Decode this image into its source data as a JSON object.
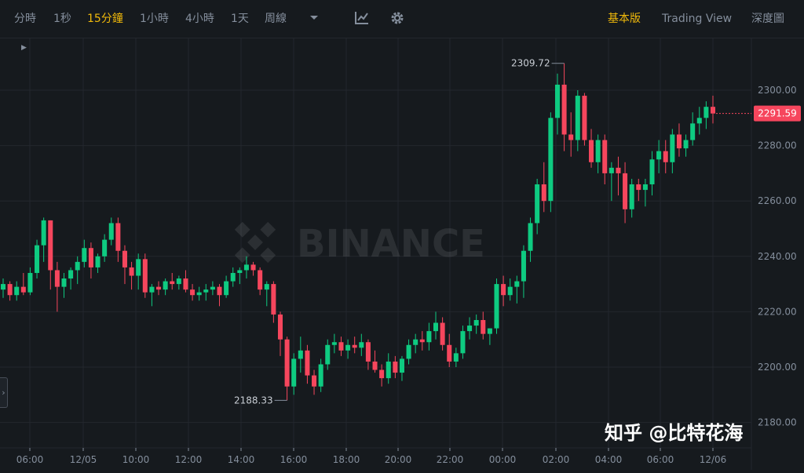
{
  "toolbar": {
    "intervals": [
      {
        "label": "分時",
        "active": false
      },
      {
        "label": "1秒",
        "active": false
      },
      {
        "label": "15分鐘",
        "active": true
      },
      {
        "label": "1小時",
        "active": false
      },
      {
        "label": "4小時",
        "active": false
      },
      {
        "label": "1天",
        "active": false
      },
      {
        "label": "周線",
        "active": false
      }
    ],
    "dropdown_icon": "chevron-down-icon",
    "indicator_icon": "indicator-icon",
    "settings_icon": "gear-icon",
    "views": [
      {
        "label": "基本版",
        "active": true
      },
      {
        "label": "Trading View",
        "active": false
      },
      {
        "label": "深度圖",
        "active": false
      }
    ]
  },
  "watermark": {
    "logo_text": "BINANCE",
    "caption": "知乎 @比特花海"
  },
  "colors": {
    "up": "#0ECB81",
    "down": "#F6465D",
    "accent": "#F0B90B",
    "background": "#161A1E",
    "grid": "#23272D",
    "text": "#848E9C"
  },
  "chart_data": {
    "type": "candlestick",
    "symbol": "",
    "y_ticks": [
      "2300.00",
      "2280.00",
      "2260.00",
      "2240.00",
      "2220.00",
      "2200.00",
      "2180.00"
    ],
    "x_ticks": [
      "06:00",
      "12/05",
      "10:00",
      "12:00",
      "14:00",
      "16:00",
      "18:00",
      "20:00",
      "22:00",
      "00:00",
      "02:00",
      "04:00",
      "06:00",
      "12/06"
    ],
    "last_price": "2291.59",
    "high_label": "2309.72",
    "low_label": "2188.33",
    "ylim": [
      2175,
      2315
    ],
    "interval": "15m",
    "candles": [
      [
        2228,
        2232,
        2225,
        2230
      ],
      [
        2230,
        2231,
        2224,
        2226
      ],
      [
        2226,
        2231,
        2224,
        2229
      ],
      [
        2229,
        2234,
        2226,
        2227
      ],
      [
        2227,
        2236,
        2226,
        2234
      ],
      [
        2234,
        2246,
        2232,
        2244
      ],
      [
        2244,
        2254,
        2238,
        2253
      ],
      [
        2253,
        2253,
        2228,
        2235
      ],
      [
        2235,
        2238,
        2220,
        2229
      ],
      [
        2229,
        2234,
        2225,
        2232
      ],
      [
        2232,
        2236,
        2228,
        2235
      ],
      [
        2235,
        2240,
        2230,
        2238
      ],
      [
        2238,
        2246,
        2236,
        2243
      ],
      [
        2243,
        2245,
        2232,
        2236
      ],
      [
        2236,
        2241,
        2234,
        2240
      ],
      [
        2240,
        2248,
        2238,
        2246
      ],
      [
        2246,
        2254,
        2244,
        2252
      ],
      [
        2252,
        2254,
        2238,
        2242
      ],
      [
        2242,
        2244,
        2230,
        2236
      ],
      [
        2236,
        2238,
        2228,
        2233
      ],
      [
        2233,
        2241,
        2228,
        2239
      ],
      [
        2239,
        2241,
        2225,
        2227
      ],
      [
        2227,
        2230,
        2222,
        2229
      ],
      [
        2229,
        2231,
        2226,
        2228
      ],
      [
        2228,
        2232,
        2226,
        2231
      ],
      [
        2231,
        2234,
        2228,
        2230
      ],
      [
        2230,
        2233,
        2228,
        2232
      ],
      [
        2232,
        2235,
        2227,
        2228
      ],
      [
        2228,
        2230,
        2224,
        2226
      ],
      [
        2226,
        2229,
        2224,
        2227
      ],
      [
        2227,
        2230,
        2224,
        2228
      ],
      [
        2228,
        2231,
        2226,
        2229
      ],
      [
        2229,
        2230,
        2222,
        2226
      ],
      [
        2226,
        2233,
        2225,
        2231
      ],
      [
        2231,
        2236,
        2229,
        2234
      ],
      [
        2234,
        2236,
        2230,
        2235
      ],
      [
        2235,
        2240,
        2232,
        2237
      ],
      [
        2237,
        2238,
        2233,
        2235
      ],
      [
        2235,
        2236,
        2226,
        2228
      ],
      [
        2228,
        2231,
        2222,
        2230
      ],
      [
        2230,
        2231,
        2216,
        2219
      ],
      [
        2219,
        2220,
        2204,
        2210
      ],
      [
        2210,
        2211,
        2188,
        2193
      ],
      [
        2193,
        2205,
        2190,
        2203
      ],
      [
        2203,
        2211,
        2198,
        2206
      ],
      [
        2206,
        2208,
        2194,
        2197
      ],
      [
        2197,
        2199,
        2190,
        2193
      ],
      [
        2193,
        2203,
        2191,
        2201
      ],
      [
        2201,
        2210,
        2199,
        2208
      ],
      [
        2208,
        2212,
        2205,
        2209
      ],
      [
        2209,
        2211,
        2204,
        2206
      ],
      [
        2206,
        2210,
        2203,
        2208
      ],
      [
        2208,
        2211,
        2205,
        2207
      ],
      [
        2207,
        2212,
        2204,
        2209
      ],
      [
        2209,
        2210,
        2199,
        2202
      ],
      [
        2202,
        2206,
        2198,
        2199
      ],
      [
        2199,
        2201,
        2193,
        2196
      ],
      [
        2196,
        2205,
        2194,
        2202
      ],
      [
        2202,
        2204,
        2196,
        2198
      ],
      [
        2198,
        2204,
        2195,
        2203
      ],
      [
        2203,
        2210,
        2201,
        2208
      ],
      [
        2208,
        2212,
        2205,
        2210
      ],
      [
        2210,
        2213,
        2206,
        2209
      ],
      [
        2209,
        2216,
        2206,
        2213
      ],
      [
        2213,
        2220,
        2210,
        2216
      ],
      [
        2216,
        2218,
        2206,
        2208
      ],
      [
        2208,
        2212,
        2200,
        2202
      ],
      [
        2202,
        2207,
        2200,
        2205
      ],
      [
        2205,
        2215,
        2203,
        2213
      ],
      [
        2213,
        2218,
        2210,
        2215
      ],
      [
        2215,
        2219,
        2212,
        2217
      ],
      [
        2217,
        2220,
        2210,
        2212
      ],
      [
        2212,
        2214,
        2208,
        2214
      ],
      [
        2214,
        2232,
        2212,
        2230
      ],
      [
        2230,
        2233,
        2222,
        2226
      ],
      [
        2226,
        2232,
        2224,
        2229
      ],
      [
        2229,
        2233,
        2223,
        2231
      ],
      [
        2231,
        2244,
        2225,
        2242
      ],
      [
        2242,
        2254,
        2238,
        2252
      ],
      [
        2252,
        2268,
        2248,
        2266
      ],
      [
        2266,
        2274,
        2256,
        2260
      ],
      [
        2260,
        2292,
        2256,
        2290
      ],
      [
        2290,
        2306,
        2284,
        2302
      ],
      [
        2302,
        2309.72,
        2278,
        2284
      ],
      [
        2284,
        2292,
        2276,
        2282
      ],
      [
        2282,
        2300,
        2278,
        2298
      ],
      [
        2298,
        2299,
        2280,
        2282
      ],
      [
        2282,
        2286,
        2272,
        2274
      ],
      [
        2274,
        2284,
        2270,
        2282
      ],
      [
        2282,
        2284,
        2266,
        2270
      ],
      [
        2270,
        2274,
        2260,
        2272
      ],
      [
        2272,
        2276,
        2262,
        2270
      ],
      [
        2270,
        2274,
        2252,
        2257
      ],
      [
        2257,
        2268,
        2254,
        2266
      ],
      [
        2266,
        2268,
        2260,
        2264
      ],
      [
        2264,
        2268,
        2258,
        2266
      ],
      [
        2266,
        2278,
        2262,
        2275
      ],
      [
        2275,
        2282,
        2270,
        2278
      ],
      [
        2278,
        2282,
        2270,
        2274
      ],
      [
        2274,
        2286,
        2270,
        2284
      ],
      [
        2284,
        2288,
        2276,
        2279
      ],
      [
        2279,
        2284,
        2276,
        2282
      ],
      [
        2282,
        2292,
        2280,
        2288
      ],
      [
        2288,
        2294,
        2284,
        2290
      ],
      [
        2290,
        2296,
        2286,
        2294
      ],
      [
        2294,
        2298,
        2288,
        2291.59
      ]
    ]
  }
}
